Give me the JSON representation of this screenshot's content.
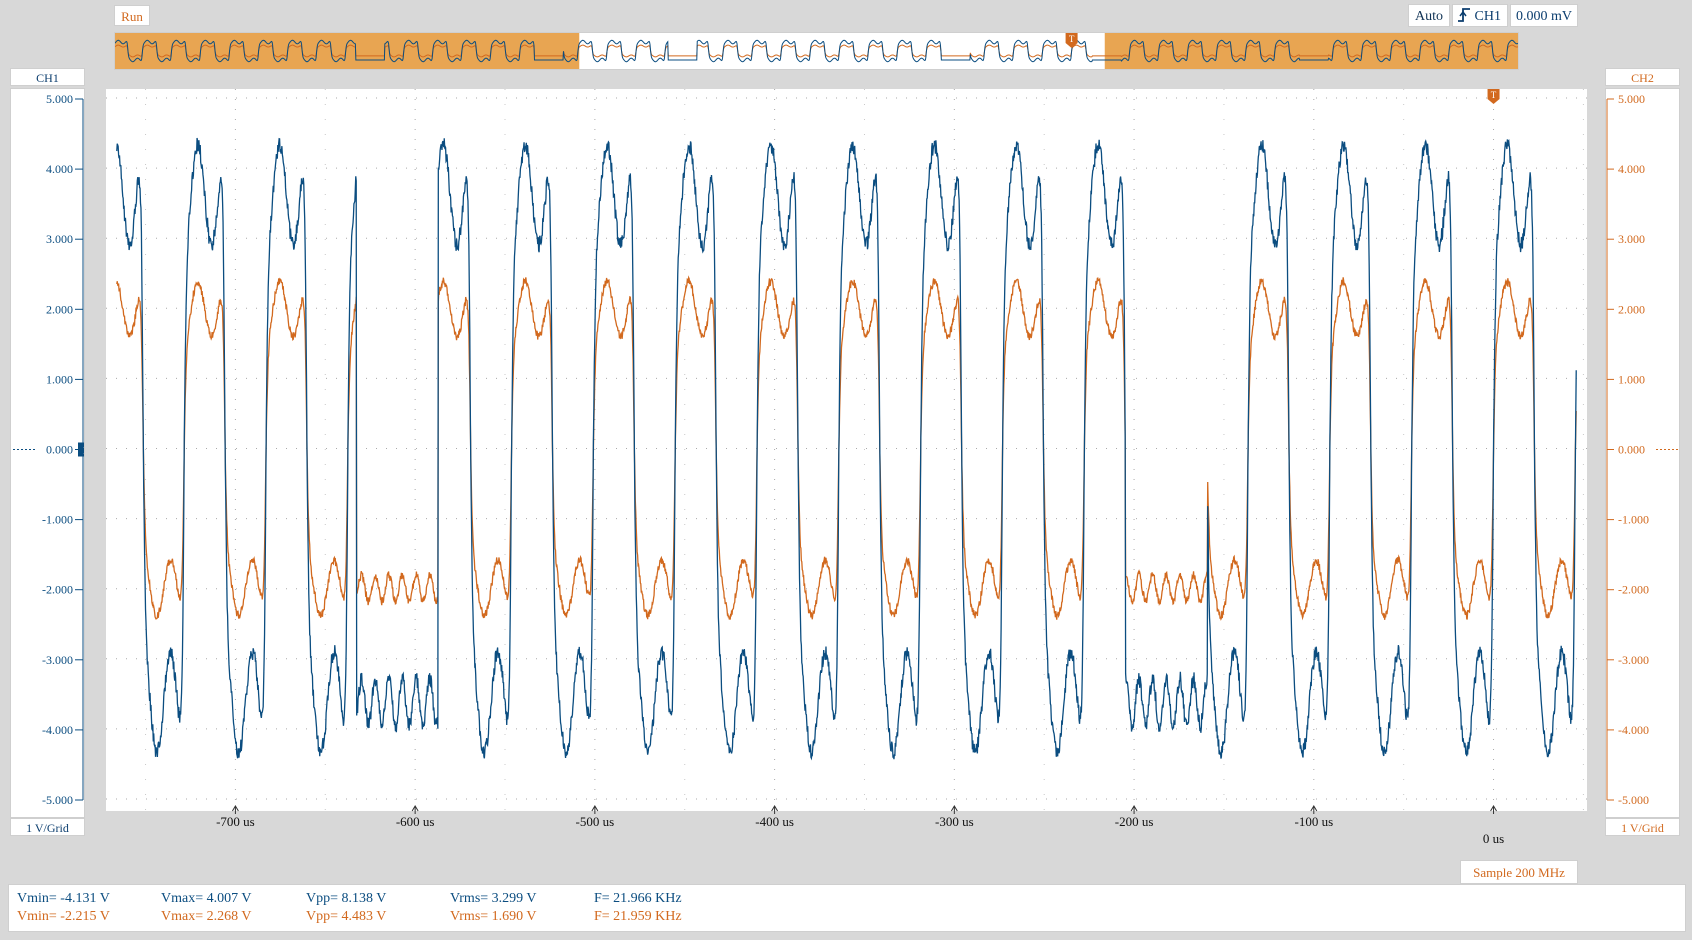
{
  "toolbar": {
    "run_label": "Run",
    "trigger_mode": "Auto",
    "trigger_source": "CH1",
    "trigger_level": "0.000 mV",
    "trigger_marker": "T"
  },
  "channels": {
    "ch1": {
      "label": "CH1",
      "scale": "1 V/Grid",
      "color": "#0b4d80",
      "ground_marker": "1"
    },
    "ch2": {
      "label": "CH2",
      "scale": "1 V/Grid",
      "color": "#d2691e"
    }
  },
  "sample_rate": "Sample 200 MHz",
  "chart_data": {
    "type": "line",
    "title": "",
    "xlabel": "",
    "ylabel": "",
    "x_range_us": [
      -772,
      52
    ],
    "y_range": [
      -5,
      5
    ],
    "y_ticks": [
      "5.000",
      "4.000",
      "3.000",
      "2.000",
      "1.000",
      "0.000",
      "-1.000",
      "-2.000",
      "-3.000",
      "-4.000",
      "-5.000"
    ],
    "x_tick_values": [
      -700,
      -600,
      -500,
      -400,
      -300,
      -200,
      -100
    ],
    "x_tick_labels": [
      "-700 us",
      "-600 us",
      "-500 us",
      "-400 us",
      "-300 us",
      "-200 us",
      "-100 us"
    ],
    "origin_label": "0 us",
    "origin_value": 0,
    "grid": true,
    "period_us": 45.53,
    "missing_pulse_centers_us": [
      -610,
      -182
    ],
    "series": [
      {
        "channel": "CH1",
        "amplitude": 4.0,
        "color": "#0b4d80"
      },
      {
        "channel": "CH2",
        "amplitude": 2.2,
        "color": "#d2691e"
      }
    ]
  },
  "measurements": {
    "ch1": {
      "vmin": "Vmin= -4.131 V",
      "vmax": "Vmax= 4.007 V",
      "vpp": "Vpp= 8.138 V",
      "vrms": "Vrms= 3.299 V",
      "freq": "F= 21.966 KHz",
      "color": "#0b4d80"
    },
    "ch2": {
      "vmin": "Vmin= -2.215 V",
      "vmax": "Vmax= 2.268 V",
      "vpp": "Vpp= 4.483 V",
      "vrms": "Vrms= 1.690 V",
      "freq": "F= 21.959 KHz",
      "color": "#d2691e"
    }
  },
  "icons": {
    "trigger_edge": "rising-edge-icon",
    "trigger_marker": "trigger-marker-icon"
  }
}
